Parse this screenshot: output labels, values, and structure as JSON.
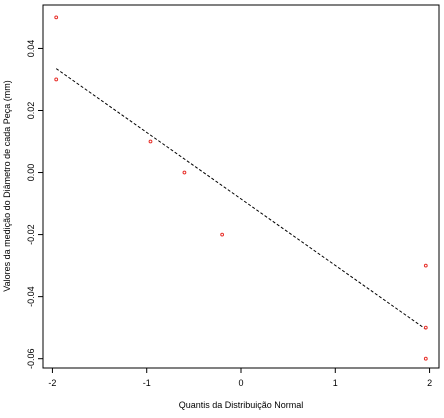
{
  "chart_data": {
    "type": "scatter",
    "title": "",
    "xlabel": "Quantis da Distribuição Normal",
    "ylabel": "Valores da medição do Diâmetro de cada Peça (mm)",
    "xlim": [
      -2.1,
      2.1
    ],
    "ylim": [
      -0.063,
      0.054
    ],
    "x_ticks": [
      -2,
      -1,
      0,
      1,
      2
    ],
    "x_tick_labels": [
      "-2",
      "-1",
      "0",
      "1",
      "2"
    ],
    "y_ticks": [
      0.04,
      0.02,
      0.0,
      -0.02,
      -0.04,
      -0.06
    ],
    "y_tick_labels": [
      "0.04",
      "0.02",
      "0.00",
      "-0.02",
      "-0.04",
      "-0.06"
    ],
    "grid": false,
    "legend": "none",
    "points": [
      {
        "x": -1.96,
        "y": 0.05
      },
      {
        "x": -1.96,
        "y": 0.03
      },
      {
        "x": -0.96,
        "y": 0.01
      },
      {
        "x": -0.6,
        "y": 0.0
      },
      {
        "x": -0.2,
        "y": -0.02
      },
      {
        "x": 1.96,
        "y": -0.03
      },
      {
        "x": 1.96,
        "y": -0.05
      },
      {
        "x": 1.96,
        "y": -0.06
      }
    ],
    "reference_line": {
      "x1": -1.96,
      "y1": 0.0335,
      "x2": 1.96,
      "y2": -0.0505,
      "style": "dashed"
    },
    "colors": {
      "points": "#e8302a",
      "line": "#000000",
      "frame": "#000000"
    }
  }
}
